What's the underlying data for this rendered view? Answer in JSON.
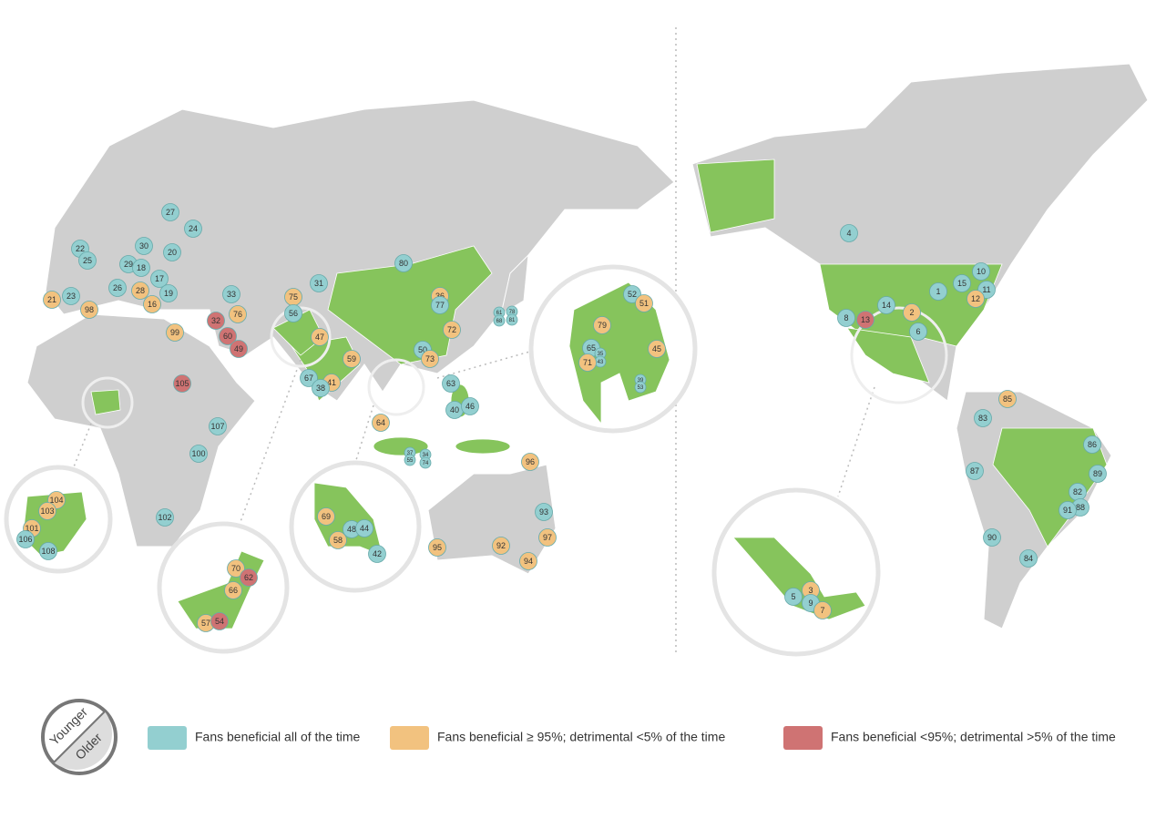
{
  "markers": [
    {
      "label": 27,
      "color": "#93cfd0"
    },
    {
      "label": 24,
      "color": "#93cfd0"
    },
    {
      "label": 22,
      "color": "#93cfd0"
    },
    {
      "label": 25,
      "color": "#93cfd0"
    },
    {
      "label": 30,
      "color": "#93cfd0"
    },
    {
      "label": 20,
      "color": "#93cfd0"
    },
    {
      "label": 29,
      "color": "#93cfd0"
    },
    {
      "label": 18,
      "color": "#93cfd0"
    },
    {
      "label": 17,
      "color": "#93cfd0"
    },
    {
      "label": 26,
      "color": "#93cfd0"
    },
    {
      "label": 28,
      "color": "#f2c27f"
    },
    {
      "label": 19,
      "color": "#93cfd0"
    },
    {
      "label": 16,
      "color": "#f2c27f"
    },
    {
      "label": 21,
      "color": "#f2c27f"
    },
    {
      "label": 23,
      "color": "#93cfd0"
    },
    {
      "label": 98,
      "color": "#f2c27f"
    },
    {
      "label": 33,
      "color": "#93cfd0"
    },
    {
      "label": 76,
      "color": "#f2c27f"
    },
    {
      "label": 32,
      "color": "#cf7373"
    },
    {
      "label": 60,
      "color": "#cf7373"
    },
    {
      "label": 49,
      "color": "#cf7373"
    },
    {
      "label": 99,
      "color": "#f2c27f"
    },
    {
      "label": 105,
      "color": "#cf7373"
    },
    {
      "label": 107,
      "color": "#93cfd0"
    },
    {
      "label": 100,
      "color": "#93cfd0"
    },
    {
      "label": 102,
      "color": "#93cfd0"
    },
    {
      "label": 80,
      "color": "#93cfd0"
    },
    {
      "label": 31,
      "color": "#93cfd0"
    },
    {
      "label": 75,
      "color": "#f2c27f"
    },
    {
      "label": 56,
      "color": "#93cfd0"
    },
    {
      "label": 47,
      "color": "#f2c27f"
    },
    {
      "label": 36,
      "color": "#f2c27f"
    },
    {
      "label": 77,
      "color": "#93cfd0"
    },
    {
      "label": 72,
      "color": "#f2c27f"
    },
    {
      "label": 50,
      "color": "#93cfd0"
    },
    {
      "label": 73,
      "color": "#f2c27f"
    },
    {
      "label": 59,
      "color": "#f2c27f"
    },
    {
      "label": 67,
      "color": "#93cfd0"
    },
    {
      "label": 41,
      "color": "#f2c27f"
    },
    {
      "label": 38,
      "color": "#93cfd0"
    },
    {
      "label": 63,
      "color": "#93cfd0"
    },
    {
      "label": 40,
      "color": "#93cfd0"
    },
    {
      "label": 46,
      "color": "#93cfd0"
    },
    {
      "label": 64,
      "color": "#f2c27f"
    },
    {
      "label": 37,
      "color": "#93cfd0"
    },
    {
      "label": 55,
      "color": "#93cfd0"
    },
    {
      "label": 34,
      "color": "#93cfd0"
    },
    {
      "label": 74,
      "color": "#93cfd0"
    },
    {
      "label": 61,
      "color": "#93cfd0"
    },
    {
      "label": 68,
      "color": "#93cfd0"
    },
    {
      "label": 78,
      "color": "#93cfd0"
    },
    {
      "label": 81,
      "color": "#93cfd0"
    },
    {
      "label": 96,
      "color": "#f2c27f"
    },
    {
      "label": 93,
      "color": "#93cfd0"
    },
    {
      "label": 97,
      "color": "#f2c27f"
    },
    {
      "label": 95,
      "color": "#f2c27f"
    },
    {
      "label": 92,
      "color": "#f2c27f"
    },
    {
      "label": 94,
      "color": "#f2c27f"
    },
    {
      "label": 52,
      "color": "#93cfd0"
    },
    {
      "label": 51,
      "color": "#f2c27f"
    },
    {
      "label": 79,
      "color": "#f2c27f"
    },
    {
      "label": 65,
      "color": "#93cfd0"
    },
    {
      "label": 35,
      "color": "#93cfd0"
    },
    {
      "label": 43,
      "color": "#93cfd0"
    },
    {
      "label": 71,
      "color": "#f2c27f"
    },
    {
      "label": 45,
      "color": "#f2c27f"
    },
    {
      "label": 39,
      "color": "#93cfd0"
    },
    {
      "label": 53,
      "color": "#93cfd0"
    },
    {
      "label": 104,
      "color": "#f2c27f"
    },
    {
      "label": 103,
      "color": "#f2c27f"
    },
    {
      "label": 101,
      "color": "#f2c27f"
    },
    {
      "label": 106,
      "color": "#93cfd0"
    },
    {
      "label": 108,
      "color": "#93cfd0"
    },
    {
      "label": 70,
      "color": "#f2c27f"
    },
    {
      "label": 62,
      "color": "#cf7373"
    },
    {
      "label": 66,
      "color": "#f2c27f"
    },
    {
      "label": 57,
      "color": "#f2c27f"
    },
    {
      "label": 54,
      "color": "#cf7373"
    },
    {
      "label": 69,
      "color": "#f2c27f"
    },
    {
      "label": 48,
      "color": "#93cfd0"
    },
    {
      "label": 44,
      "color": "#93cfd0"
    },
    {
      "label": 58,
      "color": "#f2c27f"
    },
    {
      "label": 42,
      "color": "#93cfd0"
    },
    {
      "label": 4,
      "color": "#93cfd0"
    },
    {
      "label": 10,
      "color": "#93cfd0"
    },
    {
      "label": 15,
      "color": "#93cfd0"
    },
    {
      "label": 11,
      "color": "#93cfd0"
    },
    {
      "label": 12,
      "color": "#f2c27f"
    },
    {
      "label": 1,
      "color": "#93cfd0"
    },
    {
      "label": 14,
      "color": "#93cfd0"
    },
    {
      "label": 2,
      "color": "#f2c27f"
    },
    {
      "label": 8,
      "color": "#93cfd0"
    },
    {
      "label": 13,
      "color": "#cf7373"
    },
    {
      "label": 6,
      "color": "#93cfd0"
    },
    {
      "label": 85,
      "color": "#f2c27f"
    },
    {
      "label": 83,
      "color": "#93cfd0"
    },
    {
      "label": 86,
      "color": "#93cfd0"
    },
    {
      "label": 89,
      "color": "#93cfd0"
    },
    {
      "label": 87,
      "color": "#93cfd0"
    },
    {
      "label": 82,
      "color": "#93cfd0"
    },
    {
      "label": 88,
      "color": "#93cfd0"
    },
    {
      "label": 91,
      "color": "#93cfd0"
    },
    {
      "label": 90,
      "color": "#93cfd0"
    },
    {
      "label": 84,
      "color": "#93cfd0"
    },
    {
      "label": 3,
      "color": "#f2c27f"
    },
    {
      "label": 5,
      "color": "#93cfd0"
    },
    {
      "label": 9,
      "color": "#93cfd0"
    },
    {
      "label": 7,
      "color": "#f2c27f"
    }
  ],
  "age_key": {
    "top": "Younger",
    "bottom": "Older"
  },
  "legend": [
    {
      "name": "Fans beneficial all of the time",
      "color": "#93cfd0"
    },
    {
      "name": "Fans beneficial ≥ 95%; detrimental <5% of the time",
      "color": "#f2c27f"
    },
    {
      "name": "Fans beneficial <95%; detrimental >5% of the time",
      "color": "#cf7373"
    }
  ]
}
